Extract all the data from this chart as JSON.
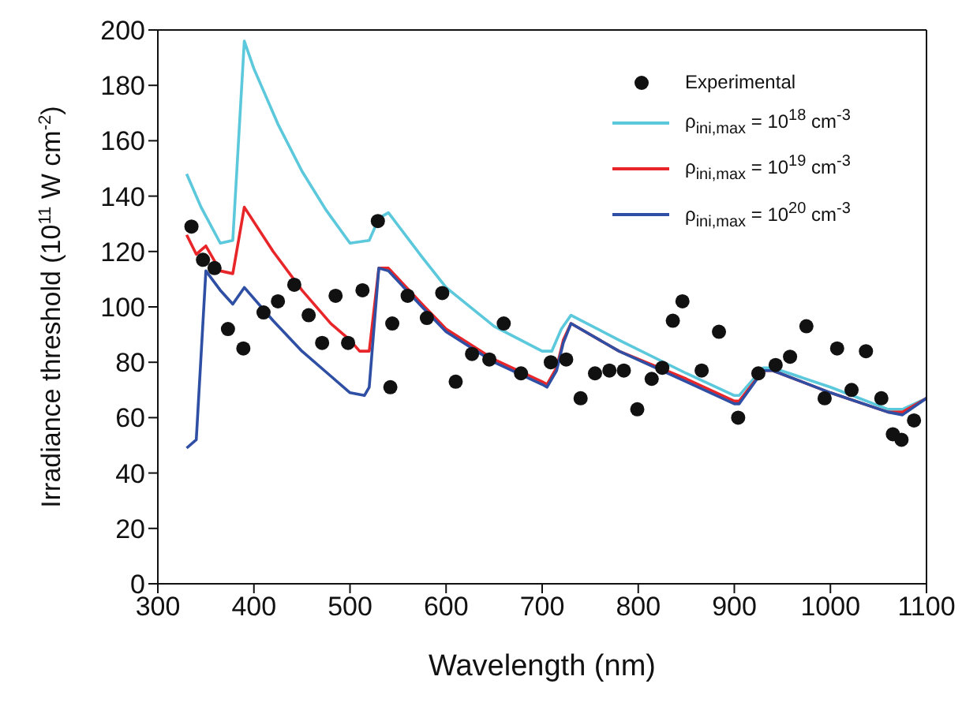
{
  "chart_data": {
    "type": "line",
    "xlabel": "Wavelength (nm)",
    "ylabel": "Irradiance threshold (10$^{11}$ W cm$^{-2}$)",
    "xlim": [
      300,
      1100
    ],
    "xticks": [
      300,
      400,
      500,
      600,
      700,
      800,
      900,
      1000,
      1100
    ],
    "ylim": [
      0,
      200
    ],
    "yticks": [
      0,
      20,
      40,
      60,
      80,
      100,
      120,
      140,
      160,
      180,
      200
    ],
    "grid": false,
    "legend": "top right",
    "line_style": "solid",
    "series": [
      {
        "name": "Experimental",
        "type": "scatter",
        "marker": "circle",
        "color": "#111111",
        "x": [
          335,
          347,
          359,
          373,
          389,
          410,
          425,
          442,
          457,
          471,
          485,
          498,
          513,
          529,
          544,
          542,
          560,
          580,
          596,
          610,
          627,
          645,
          660,
          678,
          709,
          725,
          740,
          755,
          770,
          785,
          799,
          814,
          825,
          836,
          846,
          866,
          884,
          904,
          925,
          943,
          958,
          975,
          994,
          1007,
          1022,
          1037,
          1053,
          1065,
          1074,
          1087
        ],
        "values": [
          129,
          117,
          114,
          92,
          85,
          98,
          102,
          108,
          97,
          87,
          104,
          87,
          106,
          131,
          94,
          71,
          104,
          96,
          105,
          73,
          83,
          81,
          94,
          76,
          80,
          81,
          67,
          76,
          77,
          77,
          63,
          74,
          78,
          95,
          102,
          77,
          91,
          60,
          76,
          79,
          82,
          93,
          67,
          85,
          70,
          84,
          67,
          54,
          52,
          59
        ]
      },
      {
        "name": "ρ$_{ini,max}$ = 10$^{18}$ cm$^{-3}$",
        "type": "line",
        "color": "#5bc8dc",
        "x": [
          330,
          345,
          365,
          378,
          390,
          400,
          425,
          450,
          475,
          500,
          520,
          530,
          540,
          575,
          600,
          650,
          700,
          710,
          720,
          730,
          780,
          850,
          900,
          905,
          930,
          940,
          1000,
          1060,
          1075,
          1100
        ],
        "values": [
          148,
          136,
          123,
          124,
          196,
          186,
          166,
          149,
          135,
          123,
          124,
          132,
          134,
          118,
          107,
          93,
          84,
          84,
          92,
          97,
          88,
          76,
          68,
          68,
          78,
          78,
          71,
          63,
          63,
          67
        ]
      },
      {
        "name": "ρ$_{ini,max}$ = 10$^{19}$ cm$^{-3}$",
        "type": "line",
        "color": "#e8262a",
        "x": [
          330,
          340,
          350,
          365,
          378,
          390,
          420,
          450,
          480,
          500,
          510,
          520,
          530,
          540,
          575,
          600,
          650,
          700,
          705,
          715,
          722,
          730,
          780,
          850,
          900,
          905,
          930,
          940,
          1000,
          1060,
          1075,
          1100
        ],
        "values": [
          126,
          119,
          122,
          113,
          112,
          136,
          120,
          106,
          94,
          88,
          84,
          84,
          114,
          114,
          101,
          92,
          81,
          73,
          72,
          78,
          88,
          94,
          84,
          74,
          66,
          66,
          77,
          77,
          69,
          62,
          62,
          67
        ]
      },
      {
        "name": "ρ$_{ini,max}$ = 10$^{20}$ cm$^{-3}$",
        "type": "line",
        "color": "#2e4fa3",
        "x": [
          330,
          340,
          350,
          365,
          378,
          390,
          420,
          450,
          480,
          500,
          515,
          520,
          530,
          540,
          575,
          600,
          650,
          700,
          705,
          715,
          722,
          730,
          780,
          850,
          900,
          905,
          930,
          940,
          1000,
          1060,
          1075,
          1100
        ],
        "values": [
          49,
          52,
          113,
          106,
          101,
          107,
          95,
          84,
          75,
          69,
          68,
          71,
          114,
          113,
          100,
          91,
          80,
          72,
          71,
          77,
          87,
          94,
          84,
          73,
          65,
          65,
          77,
          77,
          69,
          62,
          61,
          67
        ]
      }
    ]
  }
}
